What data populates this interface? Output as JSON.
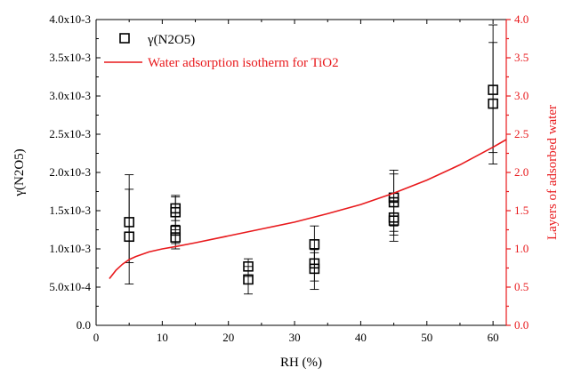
{
  "chart_data": {
    "type": "scatter",
    "x_axis": {
      "label": "RH (%)",
      "range": [
        0,
        62
      ],
      "ticks": [
        0,
        10,
        20,
        30,
        40,
        50,
        60
      ],
      "tick_labels": [
        "0",
        "10",
        "20",
        "30",
        "40",
        "50",
        "60"
      ]
    },
    "y_left": {
      "label": "γ(N2O5)",
      "range": [
        0,
        0.004
      ],
      "ticks": [
        0,
        0.0005,
        0.001,
        0.0015,
        0.002,
        0.0025,
        0.003,
        0.0035,
        0.004
      ],
      "tick_labels": [
        "0.0",
        "5.0x10-4",
        "1.0x10-3",
        "1.5x10-3",
        "2.0x10-3",
        "2.5x10-3",
        "3.0x10-3",
        "3.5x10-3",
        "4.0x10-3"
      ],
      "color": "#000000"
    },
    "y_right": {
      "label": "Layers of adsorbed water",
      "range": [
        0,
        4
      ],
      "ticks": [
        0,
        0.5,
        1,
        1.5,
        2,
        2.5,
        3,
        3.5,
        4
      ],
      "tick_labels": [
        "0.0",
        "0.5",
        "1.0",
        "1.5",
        "2.0",
        "2.5",
        "3.0",
        "3.5",
        "4.0"
      ],
      "color": "#e8191c"
    },
    "series": [
      {
        "name": "γ(N2O5)",
        "kind": "scatter",
        "marker": "open-square",
        "axis": "left",
        "color": "#000000",
        "points": [
          {
            "x": 5,
            "y": 0.00135,
            "err_lo": 0.00082,
            "err_hi": 0.00197
          },
          {
            "x": 5,
            "y": 0.00116,
            "err_lo": 0.00054,
            "err_hi": 0.00178
          },
          {
            "x": 12,
            "y": 0.00153,
            "err_lo": 0.00137,
            "err_hi": 0.0017
          },
          {
            "x": 12,
            "y": 0.00148,
            "err_lo": 0.00125,
            "err_hi": 0.00168
          },
          {
            "x": 12,
            "y": 0.00124,
            "err_lo": 0.00107,
            "err_hi": 0.00142
          },
          {
            "x": 12,
            "y": 0.00115,
            "err_lo": 0.001,
            "err_hi": 0.00131
          },
          {
            "x": 23,
            "y": 0.00077,
            "err_lo": 0.00064,
            "err_hi": 0.00087
          },
          {
            "x": 23,
            "y": 0.0006,
            "err_lo": 0.00041,
            "err_hi": 0.00077
          },
          {
            "x": 33,
            "y": 0.00106,
            "err_lo": 0.0008,
            "err_hi": 0.0013
          },
          {
            "x": 33,
            "y": 0.00081,
            "err_lo": 0.00058,
            "err_hi": 0.00099
          },
          {
            "x": 33,
            "y": 0.00074,
            "err_lo": 0.00047,
            "err_hi": 0.00095
          },
          {
            "x": 45,
            "y": 0.00167,
            "err_lo": 0.0013,
            "err_hi": 0.00203
          },
          {
            "x": 45,
            "y": 0.00161,
            "err_lo": 0.00123,
            "err_hi": 0.00198
          },
          {
            "x": 45,
            "y": 0.00141,
            "err_lo": 0.00118,
            "err_hi": 0.00163
          },
          {
            "x": 45,
            "y": 0.00137,
            "err_lo": 0.0011,
            "err_hi": 0.00162
          },
          {
            "x": 60,
            "y": 0.00308,
            "err_lo": 0.00226,
            "err_hi": 0.00393
          },
          {
            "x": 60,
            "y": 0.0029,
            "err_lo": 0.00211,
            "err_hi": 0.0037
          }
        ]
      },
      {
        "name": "Water adsorption isotherm for TiO2",
        "kind": "line",
        "axis": "right",
        "color": "#e8191c",
        "x": [
          2,
          3,
          4,
          5,
          6,
          8,
          10,
          12,
          15,
          20,
          25,
          30,
          35,
          40,
          45,
          50,
          55,
          60,
          62
        ],
        "y": [
          0.61,
          0.72,
          0.8,
          0.86,
          0.9,
          0.96,
          1.0,
          1.03,
          1.08,
          1.17,
          1.26,
          1.35,
          1.46,
          1.58,
          1.73,
          1.9,
          2.1,
          2.33,
          2.43
        ]
      }
    ],
    "legend": {
      "position": "top-left"
    }
  }
}
